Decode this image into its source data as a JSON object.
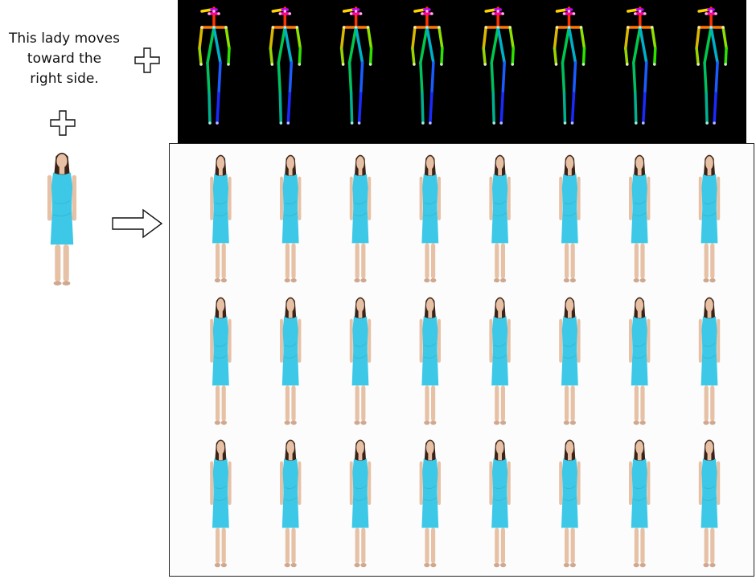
{
  "prompt": {
    "lines": [
      "This lady moves",
      "toward the",
      "right side."
    ]
  },
  "icons": {
    "plus": "plus-outline-icon",
    "arrow": "right-arrow-outline-icon"
  },
  "pose_sequence": {
    "frame_count": 8
  },
  "output_grid": {
    "rows": 3,
    "columns": 8
  },
  "colors": {
    "dress": "#3cc8e6",
    "skin": "#e7c1a6",
    "hair": "#3b2216",
    "pose_background": "#000000"
  }
}
